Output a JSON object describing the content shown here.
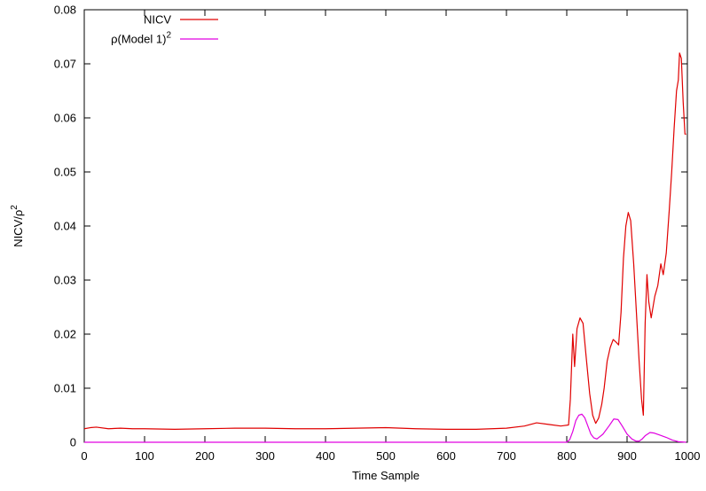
{
  "chart_data": {
    "type": "line",
    "title": "",
    "xlabel": "Time Sample",
    "ylabel": "NICV/ρ",
    "ylabel_superscript": "2",
    "xlim": [
      0,
      1000
    ],
    "ylim": [
      0,
      0.08
    ],
    "xticks": [
      "0",
      "100",
      "200",
      "300",
      "400",
      "500",
      "600",
      "700",
      "800",
      "900",
      "1000"
    ],
    "yticks": [
      "0",
      "0.01",
      "0.02",
      "0.03",
      "0.04",
      "0.05",
      "0.06",
      "0.07",
      "0.08"
    ],
    "grid": false,
    "legend_position": "top-left",
    "series": [
      {
        "name": "NICV",
        "legend_label": "NICV",
        "color": "#e00000",
        "points": [
          [
            0,
            0.0025
          ],
          [
            10,
            0.0027
          ],
          [
            20,
            0.0028
          ],
          [
            40,
            0.0025
          ],
          [
            60,
            0.0026
          ],
          [
            80,
            0.0025
          ],
          [
            100,
            0.0025
          ],
          [
            150,
            0.0024
          ],
          [
            200,
            0.0025
          ],
          [
            250,
            0.0026
          ],
          [
            300,
            0.0026
          ],
          [
            350,
            0.0025
          ],
          [
            400,
            0.0025
          ],
          [
            450,
            0.0026
          ],
          [
            500,
            0.0027
          ],
          [
            550,
            0.0025
          ],
          [
            600,
            0.0024
          ],
          [
            650,
            0.0024
          ],
          [
            700,
            0.0026
          ],
          [
            730,
            0.003
          ],
          [
            750,
            0.0036
          ],
          [
            770,
            0.0033
          ],
          [
            790,
            0.003
          ],
          [
            803,
            0.0032
          ],
          [
            806,
            0.008
          ],
          [
            810,
            0.02
          ],
          [
            813,
            0.014
          ],
          [
            817,
            0.021
          ],
          [
            822,
            0.023
          ],
          [
            827,
            0.022
          ],
          [
            832,
            0.016
          ],
          [
            838,
            0.009
          ],
          [
            843,
            0.005
          ],
          [
            848,
            0.0035
          ],
          [
            853,
            0.0045
          ],
          [
            858,
            0.007
          ],
          [
            862,
            0.01
          ],
          [
            867,
            0.015
          ],
          [
            872,
            0.0175
          ],
          [
            877,
            0.019
          ],
          [
            882,
            0.0185
          ],
          [
            886,
            0.018
          ],
          [
            890,
            0.024
          ],
          [
            894,
            0.034
          ],
          [
            898,
            0.04
          ],
          [
            902,
            0.0425
          ],
          [
            906,
            0.041
          ],
          [
            911,
            0.033
          ],
          [
            916,
            0.023
          ],
          [
            920,
            0.015
          ],
          [
            924,
            0.008
          ],
          [
            927,
            0.005
          ],
          [
            930,
            0.022
          ],
          [
            933,
            0.031
          ],
          [
            936,
            0.026
          ],
          [
            940,
            0.023
          ],
          [
            946,
            0.027
          ],
          [
            951,
            0.029
          ],
          [
            956,
            0.033
          ],
          [
            960,
            0.031
          ],
          [
            965,
            0.035
          ],
          [
            970,
            0.043
          ],
          [
            974,
            0.05
          ],
          [
            978,
            0.058
          ],
          [
            982,
            0.065
          ],
          [
            985,
            0.067
          ],
          [
            987,
            0.072
          ],
          [
            990,
            0.071
          ],
          [
            993,
            0.063
          ],
          [
            996,
            0.057
          ],
          [
            998,
            0.057
          ]
        ]
      },
      {
        "name": "ρ(Model 1)",
        "legend_label": "ρ(Model 1)",
        "legend_superscript": "2",
        "color": "#e000e0",
        "points": [
          [
            0,
            0.0
          ],
          [
            800,
            0.0
          ],
          [
            805,
            0.0005
          ],
          [
            810,
            0.002
          ],
          [
            815,
            0.004
          ],
          [
            820,
            0.005
          ],
          [
            825,
            0.0052
          ],
          [
            830,
            0.0045
          ],
          [
            835,
            0.003
          ],
          [
            840,
            0.0015
          ],
          [
            845,
            0.0008
          ],
          [
            850,
            0.0006
          ],
          [
            860,
            0.0015
          ],
          [
            870,
            0.003
          ],
          [
            878,
            0.0043
          ],
          [
            885,
            0.0042
          ],
          [
            892,
            0.003
          ],
          [
            900,
            0.0015
          ],
          [
            908,
            0.0006
          ],
          [
            915,
            0.0002
          ],
          [
            920,
            0.0002
          ],
          [
            925,
            0.0006
          ],
          [
            930,
            0.0012
          ],
          [
            938,
            0.0018
          ],
          [
            945,
            0.0017
          ],
          [
            955,
            0.0013
          ],
          [
            965,
            0.0009
          ],
          [
            975,
            0.0004
          ],
          [
            985,
            0.0001
          ],
          [
            998,
            0.0
          ]
        ]
      }
    ]
  }
}
